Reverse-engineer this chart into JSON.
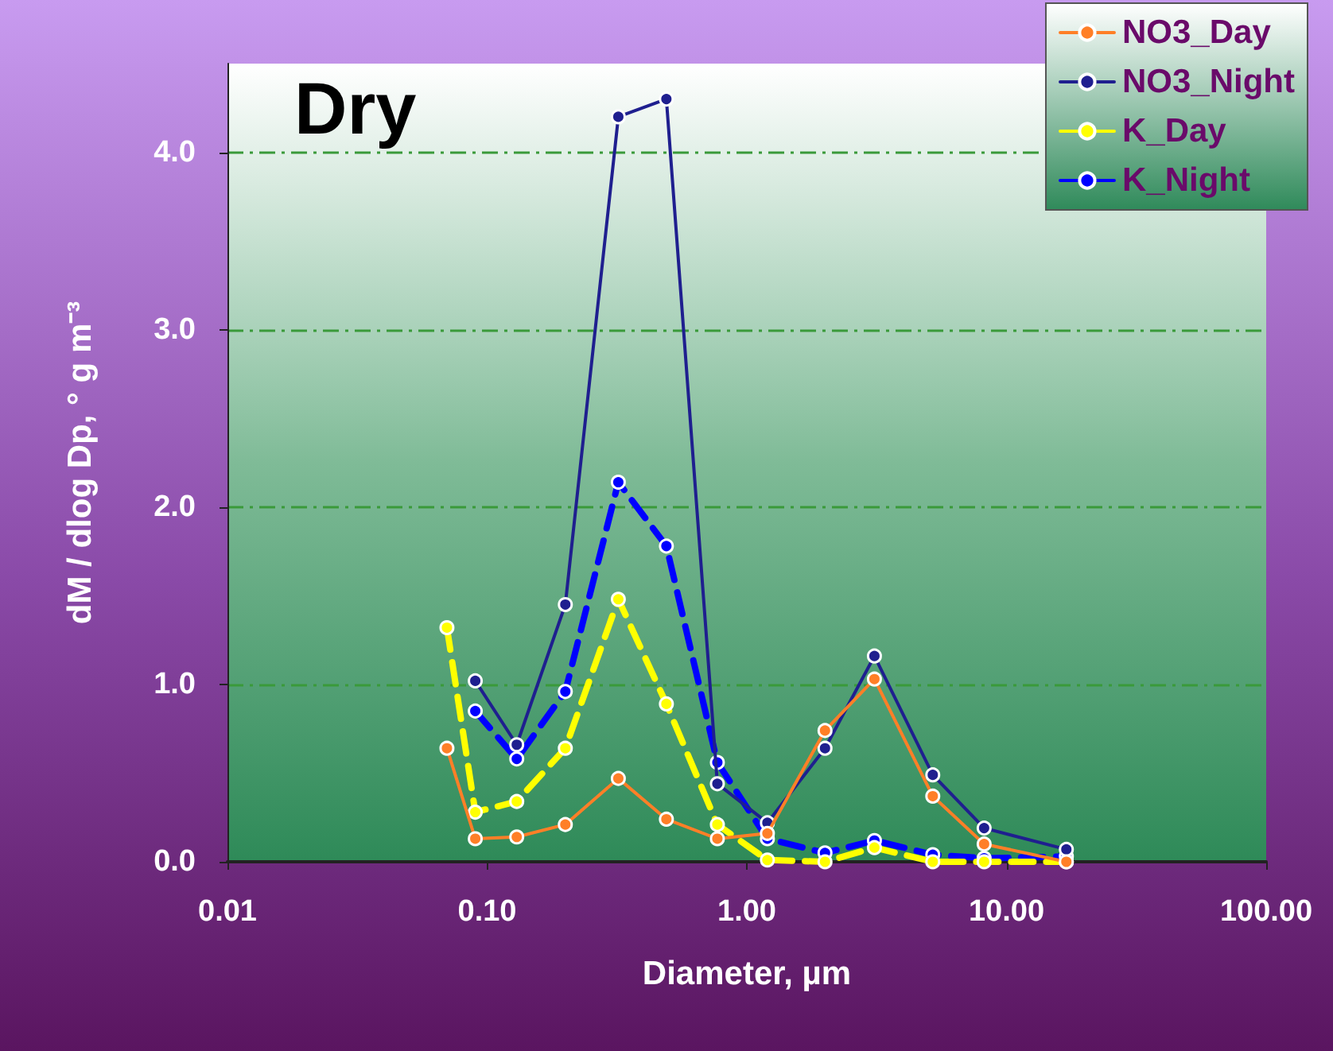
{
  "chart_data": {
    "type": "line",
    "xlabel": "Diameter, µm",
    "ylabel": "dM / dlog Dp, ° g m⁻³",
    "annotations": [
      "Dry"
    ],
    "x": [
      0.07,
      0.09,
      0.13,
      0.2,
      0.32,
      0.49,
      0.77,
      1.2,
      2.0,
      3.1,
      5.2,
      8.2,
      17
    ],
    "series": [
      {
        "name": "NO3_Day",
        "color": "#ff7f27",
        "line_style": "solid",
        "values": [
          0.64,
          0.13,
          0.14,
          0.21,
          0.47,
          0.24,
          0.13,
          0.16,
          0.74,
          1.03,
          0.37,
          0.1,
          0.0
        ]
      },
      {
        "name": "NO3_Night",
        "color": "#1f1f8f",
        "line_style": "solid",
        "values": [
          null,
          1.02,
          0.66,
          1.45,
          4.2,
          4.3,
          0.44,
          0.22,
          0.64,
          1.16,
          0.49,
          0.19,
          0.07
        ]
      },
      {
        "name": "K_Day",
        "color": "#ffff00",
        "line_style": "dashed",
        "values": [
          1.32,
          0.28,
          0.34,
          0.64,
          1.48,
          0.89,
          0.21,
          0.01,
          0.0,
          0.08,
          0.0,
          0.0,
          0.0
        ]
      },
      {
        "name": "K_Night",
        "color": "#0000ff",
        "line_style": "dashed",
        "values": [
          null,
          0.85,
          0.58,
          0.96,
          2.14,
          1.78,
          0.56,
          0.13,
          0.05,
          0.12,
          0.04,
          0.02,
          0.03
        ]
      }
    ],
    "log": "x",
    "xlim": [
      0.01,
      100
    ],
    "xticks": [
      {
        "value": 0.01,
        "label": "0.01"
      },
      {
        "value": 0.1,
        "label": "0.10"
      },
      {
        "value": 1,
        "label": "1.00"
      },
      {
        "value": 10,
        "label": "10.00"
      },
      {
        "value": 100,
        "label": "100.00"
      }
    ],
    "ylim": [
      0,
      4.5
    ],
    "yticks": [
      {
        "value": 0,
        "label": "0.0"
      },
      {
        "value": 1,
        "label": "1.0"
      },
      {
        "value": 2,
        "label": "2.0"
      },
      {
        "value": 3,
        "label": "3.0"
      },
      {
        "value": 4,
        "label": "4.0"
      }
    ],
    "grid": "y",
    "legend": "top right",
    "marker": "circle"
  }
}
